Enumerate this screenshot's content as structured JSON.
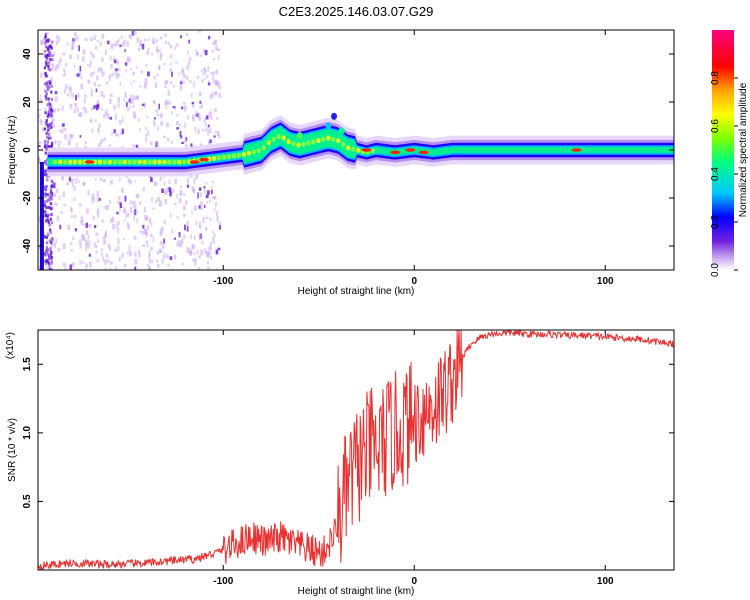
{
  "figure": {
    "title": "C2E3.2025.146.03.07.G29"
  },
  "chart_data": [
    {
      "type": "heatmap",
      "xlabel": "Height of straight line (km)",
      "ylabel": "Frequency (Hz)",
      "xlim": [
        -197,
        136
      ],
      "ylim": [
        -50,
        50
      ],
      "xticks": [
        -100,
        0,
        100
      ],
      "yticks": [
        -40,
        -20,
        0,
        20,
        40
      ],
      "colorbar": {
        "label": "Normalized spectral amplitude",
        "range": [
          0.0,
          1.0
        ],
        "ticks": [
          0.0,
          0.2,
          0.4,
          0.6,
          0.8
        ],
        "tick_labels": [
          "0.0",
          "0.2",
          "0.4",
          "0.6",
          "0.8"
        ],
        "colors": [
          "#ffffff",
          "#c8a8f0",
          "#7020e0",
          "#0000ff",
          "#00c8ff",
          "#00ff80",
          "#80ff00",
          "#ffff00",
          "#ffa000",
          "#ff0000",
          "#ff0080"
        ]
      },
      "ridge": {
        "name": "",
        "x": [
          -192,
          -180,
          -160,
          -140,
          -120,
          -110,
          -100,
          -90,
          -80,
          -75,
          -70,
          -65,
          -60,
          -55,
          -50,
          -45,
          -40,
          -35,
          -30,
          -25,
          -20,
          -10,
          0,
          10,
          20,
          40,
          60,
          80,
          100,
          120,
          136
        ],
        "y": [
          -5,
          -5,
          -5,
          -5,
          -5,
          -4,
          -3,
          -2,
          0,
          4,
          6,
          3,
          2,
          3,
          4,
          5,
          4,
          1,
          0,
          -1,
          0,
          -1,
          0,
          -1,
          0,
          0,
          0,
          0,
          0,
          0,
          0
        ]
      },
      "grid": false
    },
    {
      "type": "line",
      "xlabel": "Height of straight line (km)",
      "ylabel": "SNR (10 * v/v)",
      "y_multiplier": "(x10⁴)",
      "xlim": [
        -197,
        136
      ],
      "ylim": [
        0,
        1.75
      ],
      "xticks": [
        -100,
        0,
        100
      ],
      "yticks": [
        0.5,
        1.0,
        1.5
      ],
      "ytick_labels": [
        "0.5",
        "1.0",
        "1.5"
      ],
      "color": "#e83030",
      "series": [
        {
          "name": "",
          "x": [
            -197,
            -180,
            -160,
            -140,
            -125,
            -115,
            -105,
            -95,
            -85,
            -78,
            -70,
            -62,
            -55,
            -48,
            -42,
            -38,
            -35,
            -32,
            -30,
            -28,
            -25,
            -22,
            -20,
            -15,
            -10,
            -5,
            0,
            5,
            10,
            15,
            20,
            25,
            30,
            35,
            40,
            50,
            60,
            70,
            80,
            90,
            100,
            110,
            120,
            130,
            136
          ],
          "y": [
            0.03,
            0.05,
            0.04,
            0.05,
            0.07,
            0.08,
            0.12,
            0.18,
            0.25,
            0.2,
            0.24,
            0.18,
            0.15,
            0.12,
            0.25,
            0.45,
            0.6,
            0.7,
            0.75,
            0.8,
            0.85,
            0.9,
            0.85,
            0.95,
            1.0,
            1.05,
            1.1,
            1.15,
            1.2,
            1.28,
            1.4,
            1.55,
            1.65,
            1.7,
            1.72,
            1.73,
            1.72,
            1.72,
            1.71,
            1.71,
            1.7,
            1.69,
            1.68,
            1.66,
            1.65
          ]
        }
      ],
      "grid": false
    }
  ]
}
